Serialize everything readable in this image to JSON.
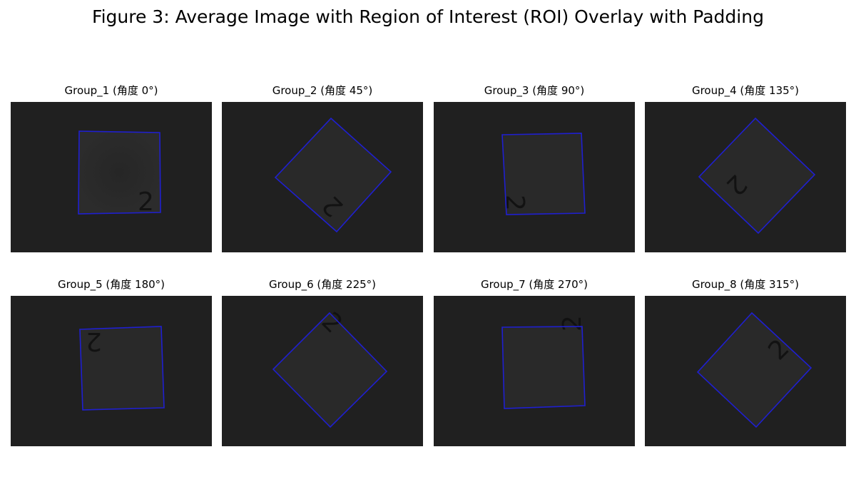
{
  "figure": {
    "title": "Figure 3: Average Image with Region of Interest (ROI) Overlay with Padding"
  },
  "colors": {
    "page_background": "#ffffff",
    "image_background": "#202020",
    "roi_outline": "#1f1fd0",
    "digit": "#0f0f0f"
  },
  "panels": [
    {
      "title": "Group_1 (角度 0°)",
      "digit": "2",
      "angle_deg": 0
    },
    {
      "title": "Group_2 (角度 45°)",
      "digit": "2",
      "angle_deg": 45
    },
    {
      "title": "Group_3 (角度 90°)",
      "digit": "2",
      "angle_deg": 90
    },
    {
      "title": "Group_4 (角度 135°)",
      "digit": "2",
      "angle_deg": 135
    },
    {
      "title": "Group_5 (角度 180°)",
      "digit": "2",
      "angle_deg": 180
    },
    {
      "title": "Group_6 (角度 225°)",
      "digit": "2",
      "angle_deg": 225
    },
    {
      "title": "Group_7 (角度 270°)",
      "digit": "2",
      "angle_deg": 270
    },
    {
      "title": "Group_8 (角度 315°)",
      "digit": "2",
      "angle_deg": 315
    }
  ]
}
